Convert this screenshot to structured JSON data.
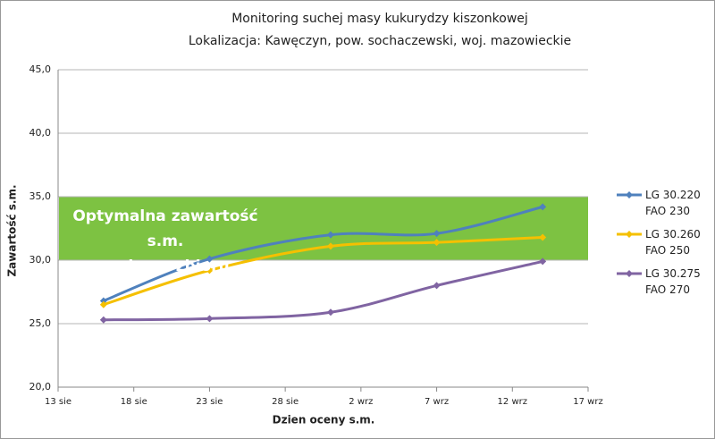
{
  "chart_data": {
    "type": "line",
    "title": "Monitoring suchej masy kukurydzy kiszonkowej",
    "subtitle": "Lokalizacja: Kawęczyn, pow. sochaczewski, woj. mazowieckie",
    "x_label": "Dzien oceny s.m.",
    "y_label": "Zawartość s.m.",
    "x": [
      16,
      23,
      31,
      38,
      45
    ],
    "xlim": [
      13,
      48
    ],
    "xticks": [
      {
        "value": 13,
        "label": "13 sie"
      },
      {
        "value": 18,
        "label": "18 sie"
      },
      {
        "value": 23,
        "label": "23 sie"
      },
      {
        "value": 28,
        "label": "28 sie"
      },
      {
        "value": 33,
        "label": "2 wrz"
      },
      {
        "value": 38,
        "label": "7 wrz"
      },
      {
        "value": 43,
        "label": "12 wrz"
      },
      {
        "value": 48,
        "label": "17 wrz"
      }
    ],
    "ylim": [
      20,
      45
    ],
    "yticks": [
      {
        "value": 20,
        "label": "20,0"
      },
      {
        "value": 25,
        "label": "25,0"
      },
      {
        "value": 30,
        "label": "30,0"
      },
      {
        "value": 35,
        "label": "35,0"
      },
      {
        "value": 40,
        "label": "40,0"
      },
      {
        "value": 45,
        "label": "45,0"
      }
    ],
    "grid": true,
    "smooth": true,
    "legend": "right",
    "highlight": {
      "range": [
        30,
        35
      ],
      "label": "Optymalna zawartość s.m.\npodczas zbioru",
      "color": "#7dc242"
    },
    "series": [
      {
        "name": "LG 30.220\nFAO 230",
        "color": "#4f81bd",
        "values": [
          26.8,
          30.1,
          32.0,
          32.1,
          34.2
        ]
      },
      {
        "name": "LG 30.260\nFAO 250",
        "color": "#f5c000",
        "values": [
          26.5,
          29.2,
          31.1,
          31.4,
          31.8
        ]
      },
      {
        "name": "LG 30.275\nFAO 270",
        "color": "#8064a2",
        "values": [
          25.3,
          25.4,
          25.9,
          28.0,
          29.9
        ]
      }
    ]
  }
}
